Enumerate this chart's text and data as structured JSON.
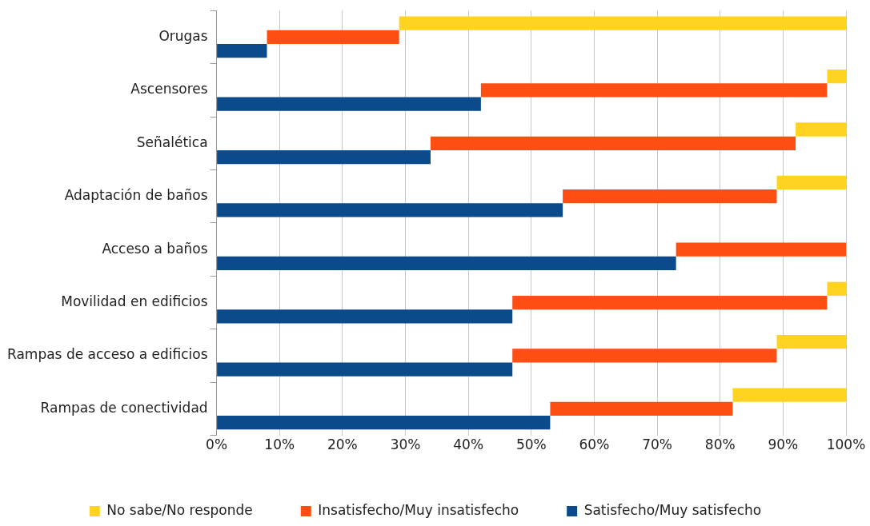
{
  "chart_data": {
    "type": "bar",
    "orientation": "horizontal",
    "stacked": true,
    "categories": [
      "Orugas",
      "Ascensores",
      "Señalética",
      "Adaptación de baños",
      "Acceso a baños",
      "Movilidad en edificios",
      "Rampas de acceso a edificios",
      "Rampas de conectividad"
    ],
    "series": [
      {
        "name": "Satisfecho/Muy satisfecho",
        "color": "#0b4a8b",
        "values": [
          8,
          42,
          34,
          55,
          73,
          47,
          47,
          53
        ]
      },
      {
        "name": "Insatisfecho/Muy insatisfecho",
        "color": "#ff4e12",
        "values": [
          21,
          55,
          58,
          34,
          27,
          50,
          42,
          29
        ]
      },
      {
        "name": "No sabe/No responde",
        "color": "#ffd320",
        "values": [
          71,
          3,
          8,
          11,
          0,
          3,
          11,
          18
        ]
      }
    ],
    "xlim": [
      0,
      100
    ],
    "xticks": [
      {
        "value": 0,
        "label": "0%"
      },
      {
        "value": 10,
        "label": "10%"
      },
      {
        "value": 20,
        "label": "20%"
      },
      {
        "value": 30,
        "label": "30%"
      },
      {
        "value": 40,
        "label": "40%"
      },
      {
        "value": 50,
        "label": "50%"
      },
      {
        "value": 60,
        "label": "60%"
      },
      {
        "value": 70,
        "label": "70%"
      },
      {
        "value": 80,
        "label": "80%"
      },
      {
        "value": 90,
        "label": "90%"
      },
      {
        "value": 100,
        "label": "100%"
      }
    ],
    "grid": "x",
    "legend": "bottom"
  }
}
